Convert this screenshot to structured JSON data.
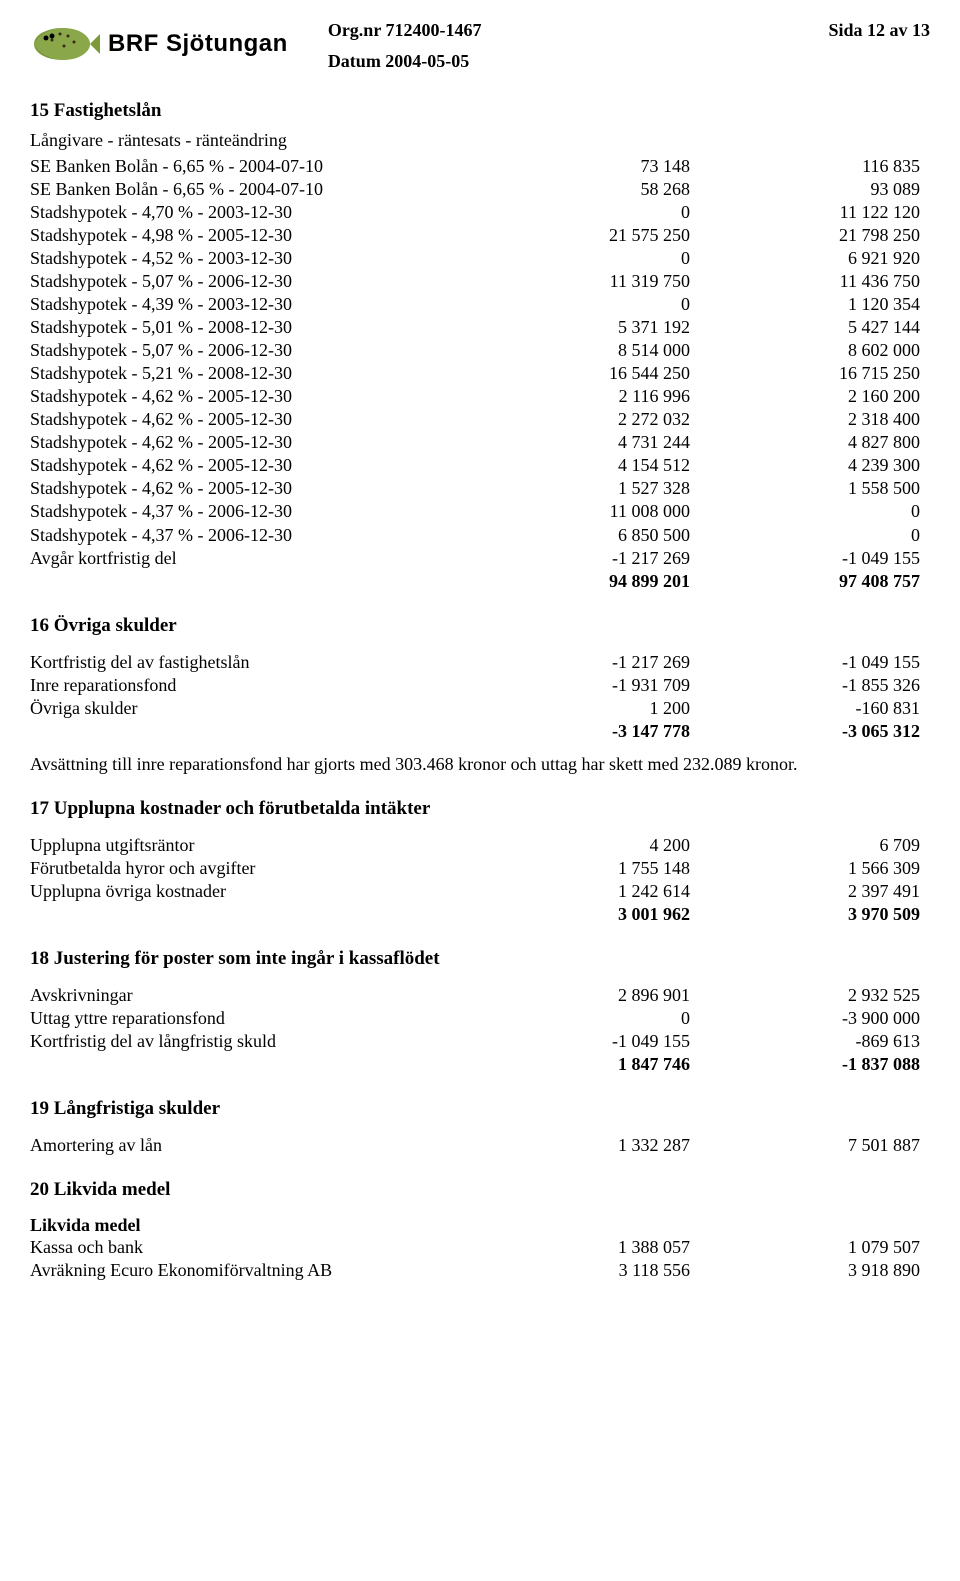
{
  "header": {
    "org_label": "Org.nr 712400-1467",
    "page_label": "Sida 12 av 13",
    "date_label": "Datum 2004-05-05",
    "logo_text": "BRF Sjötungan"
  },
  "sec15": {
    "title": "15 Fastighetslån",
    "sub": "Långivare - räntesats - ränteändring",
    "rows": [
      {
        "label": "SE Banken Bolån  -  6,65 %  -  2004-07-10",
        "v1": "73 148",
        "v2": "116 835"
      },
      {
        "label": "SE Banken Bolån  -  6,65 %  -  2004-07-10",
        "v1": "58 268",
        "v2": "93 089"
      },
      {
        "label": "Stadshypotek  -  4,70 %  -  2003-12-30",
        "v1": "0",
        "v2": "11 122 120"
      },
      {
        "label": "Stadshypotek  -  4,98 %  -  2005-12-30",
        "v1": "21 575 250",
        "v2": "21 798 250"
      },
      {
        "label": "Stadshypotek  -  4,52 %  -  2003-12-30",
        "v1": "0",
        "v2": "6 921 920"
      },
      {
        "label": "Stadshypotek  -  5,07 %  -  2006-12-30",
        "v1": "11 319 750",
        "v2": "11 436 750"
      },
      {
        "label": "Stadshypotek  -  4,39 %  -  2003-12-30",
        "v1": "0",
        "v2": "1 120 354"
      },
      {
        "label": "Stadshypotek  -  5,01 %  -  2008-12-30",
        "v1": "5 371 192",
        "v2": "5 427 144"
      },
      {
        "label": "Stadshypotek  -  5,07 %  -  2006-12-30",
        "v1": "8 514 000",
        "v2": "8 602 000"
      },
      {
        "label": "Stadshypotek  -  5,21 %  -  2008-12-30",
        "v1": "16 544 250",
        "v2": "16 715 250"
      },
      {
        "label": "Stadshypotek  -  4,62 %  -  2005-12-30",
        "v1": "2 116 996",
        "v2": "2 160 200"
      },
      {
        "label": "Stadshypotek  -  4,62 %  -  2005-12-30",
        "v1": "2 272 032",
        "v2": "2 318 400"
      },
      {
        "label": "Stadshypotek  -  4,62 %  -  2005-12-30",
        "v1": "4 731 244",
        "v2": "4 827 800"
      },
      {
        "label": "Stadshypotek  -  4,62 %  -  2005-12-30",
        "v1": "4 154 512",
        "v2": "4 239 300"
      },
      {
        "label": "Stadshypotek  -  4,62 %  -  2005-12-30",
        "v1": "1 527 328",
        "v2": "1 558 500"
      },
      {
        "label": "Stadshypotek  -  4,37 %  -  2006-12-30",
        "v1": "11 008 000",
        "v2": "0"
      },
      {
        "label": "Stadshypotek  -  4,37 %  -  2006-12-30",
        "v1": "6 850 500",
        "v2": "0"
      },
      {
        "label": "Avgår kortfristig del",
        "v1": "-1 217 269",
        "v2": "-1 049 155"
      }
    ],
    "total": {
      "v1": "94 899 201",
      "v2": "97 408 757"
    }
  },
  "sec16": {
    "title": "16 Övriga skulder",
    "rows": [
      {
        "label": "Kortfristig del av fastighetslån",
        "v1": "-1 217 269",
        "v2": "-1 049 155"
      },
      {
        "label": "Inre reparationsfond",
        "v1": "-1 931 709",
        "v2": "-1 855 326"
      },
      {
        "label": "Övriga skulder",
        "v1": "1 200",
        "v2": "-160 831"
      }
    ],
    "total": {
      "v1": "-3 147 778",
      "v2": "-3 065 312"
    },
    "note": "Avsättning till inre reparationsfond har gjorts med 303.468 kronor och uttag har skett med 232.089 kronor."
  },
  "sec17": {
    "title": "17 Upplupna kostnader och förutbetalda intäkter",
    "rows": [
      {
        "label": "Upplupna utgiftsräntor",
        "v1": "4 200",
        "v2": "6 709"
      },
      {
        "label": "Förutbetalda hyror och avgifter",
        "v1": "1 755 148",
        "v2": "1 566 309"
      },
      {
        "label": "Upplupna övriga kostnader",
        "v1": "1 242 614",
        "v2": "2 397 491"
      }
    ],
    "total": {
      "v1": "3 001 962",
      "v2": "3 970 509"
    }
  },
  "sec18": {
    "title": "18 Justering för poster som inte ingår i kassaflödet",
    "rows": [
      {
        "label": "Avskrivningar",
        "v1": "2 896 901",
        "v2": "2 932 525"
      },
      {
        "label": "Uttag yttre reparationsfond",
        "v1": "0",
        "v2": "-3 900 000"
      },
      {
        "label": "Kortfristig del av långfristig skuld",
        "v1": "-1 049 155",
        "v2": "-869 613"
      }
    ],
    "total": {
      "v1": "1 847 746",
      "v2": "-1 837 088"
    }
  },
  "sec19": {
    "title": "19 Långfristiga skulder",
    "rows": [
      {
        "label": "Amortering av lån",
        "v1": "1 332 287",
        "v2": "7 501 887"
      }
    ]
  },
  "sec20": {
    "title": "20 Likvida medel",
    "sub": "Likvida medel",
    "rows": [
      {
        "label": "Kassa och bank",
        "v1": "1 388 057",
        "v2": "1 079 507"
      },
      {
        "label": "Avräkning Ecuro Ekonomiförvaltning AB",
        "v1": "3 118 556",
        "v2": "3 918 890"
      }
    ]
  }
}
